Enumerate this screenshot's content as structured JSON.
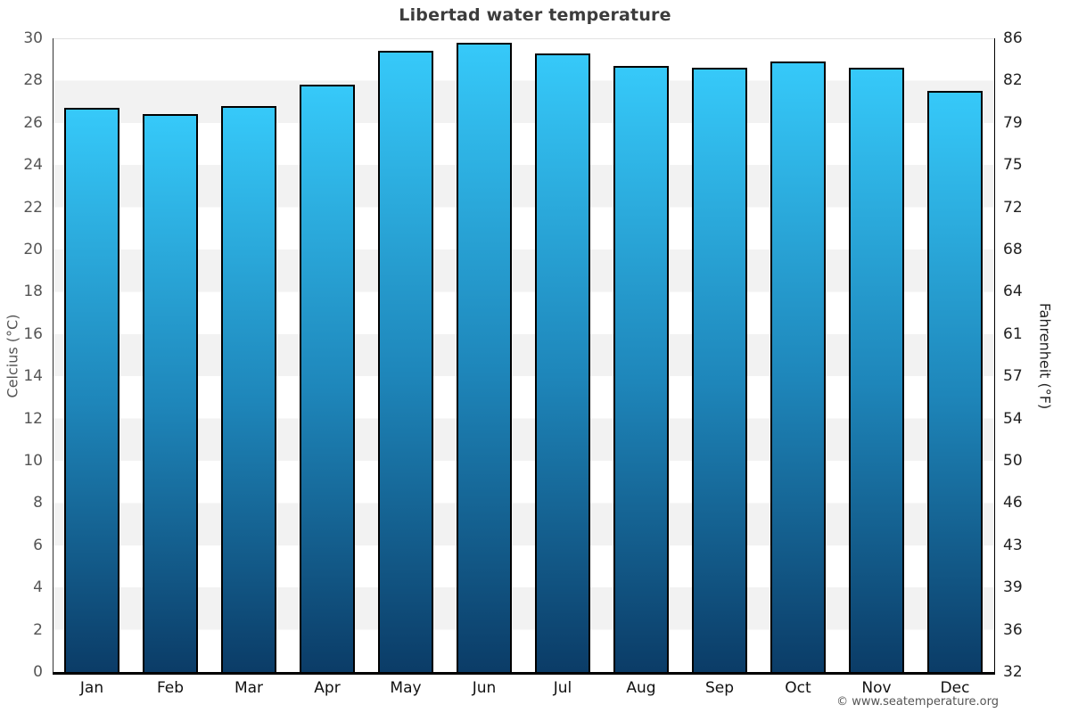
{
  "title": "Libertad water temperature",
  "chart_data": {
    "type": "bar",
    "title": "Libertad water temperature",
    "categories": [
      "Jan",
      "Feb",
      "Mar",
      "Apr",
      "May",
      "Jun",
      "Jul",
      "Aug",
      "Sep",
      "Oct",
      "Nov",
      "Dec"
    ],
    "values": [
      26.7,
      26.4,
      26.8,
      27.8,
      29.4,
      29.8,
      29.3,
      28.7,
      28.6,
      28.9,
      28.6,
      27.5
    ],
    "xlabel": "",
    "ylabel_left": "Celcius (°C)",
    "ylabel_right": "Fahrenheit (°F)",
    "ylim": [
      0,
      30
    ],
    "ytick_step": 2,
    "yticks_left": [
      "0",
      "2",
      "4",
      "6",
      "8",
      "10",
      "12",
      "14",
      "16",
      "18",
      "20",
      "22",
      "24",
      "26",
      "28",
      "30"
    ],
    "yticks_right": [
      "32",
      "36",
      "39",
      "43",
      "46",
      "50",
      "54",
      "57",
      "61",
      "64",
      "68",
      "72",
      "75",
      "79",
      "82",
      "86"
    ],
    "grid": "alternating horizontal bands every 2°C",
    "legend": "none",
    "bar_unit": "°C"
  },
  "footer": {
    "copyright": "© www.seatemperature.org"
  },
  "colors": {
    "bar_gradient_top": "#36c9f9",
    "bar_gradient_bottom": "#0b3c67",
    "bar_border": "#000000",
    "band_gray": "#f2f2f2",
    "title_text": "#3c3c3c",
    "left_tick_text": "#555555",
    "right_tick_text": "#222222",
    "month_text": "#111111",
    "copyright_text": "#555555"
  }
}
